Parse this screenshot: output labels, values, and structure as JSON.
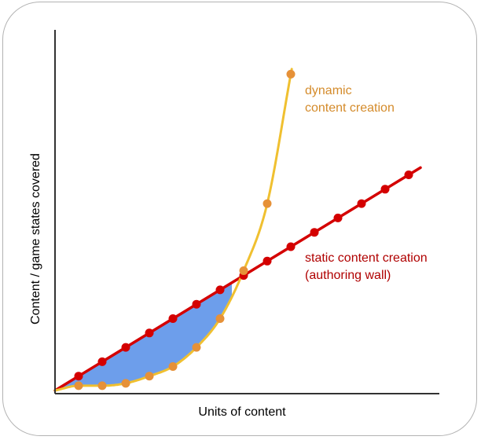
{
  "chart_data": {
    "type": "line",
    "xlabel": "Units of content",
    "ylabel": "Content / game states covered",
    "grid": false,
    "legend": "inline labels next to curves",
    "series": [
      {
        "name": "static content creation (authoring wall)",
        "label_lines": [
          "static content creation",
          "(authoring wall)"
        ],
        "color": "#d40000",
        "line_x": [
          0,
          15.5
        ],
        "line_y": [
          0,
          9.3
        ],
        "points_x": [
          1,
          2,
          3,
          4,
          5,
          6,
          7,
          8,
          9,
          10,
          11,
          12,
          13,
          14,
          15
        ],
        "points_y": [
          0.6,
          1.2,
          1.8,
          2.4,
          3.0,
          3.6,
          4.2,
          4.8,
          5.4,
          6.0,
          6.6,
          7.2,
          7.8,
          8.4,
          9.0
        ]
      },
      {
        "name": "dynamic content creation",
        "label_lines": [
          "dynamic",
          "content creation"
        ],
        "color": "#f0c030",
        "marker_color": "#e69138",
        "points_x": [
          1,
          2,
          3,
          4,
          5,
          6,
          7,
          8,
          9,
          10
        ],
        "points_y": [
          0.2,
          0.2,
          0.3,
          0.6,
          1.0,
          1.8,
          3.0,
          5.0,
          7.8,
          13.2
        ]
      }
    ],
    "shaded_region": {
      "between": [
        "static content creation (authoring wall)",
        "dynamic content creation"
      ],
      "x_range": [
        0,
        7.5
      ],
      "color": "#6d9eeb"
    }
  }
}
